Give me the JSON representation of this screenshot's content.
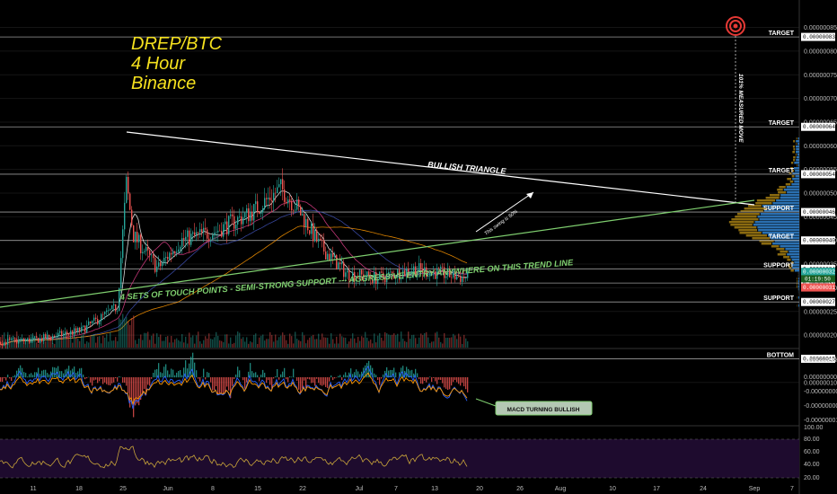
{
  "title": {
    "line1": "DREP/BTC",
    "line2": "4 Hour",
    "line3": "Binance"
  },
  "annotations": {
    "triangle": "BULLISH TRIANGLE",
    "support_line": "4 SETS OF TOUCH POINTS - SEMI-STRONG SUPPORT  ---  AGGRESSIVE ENTRY ANYWHERE ON THIS TREND LINE",
    "swing": "This swing is 50%",
    "measured": "101% MEASURED MOVE",
    "macd": "MACD TURNING BULLISH"
  },
  "colors": {
    "up": "#26a69a",
    "down": "#ef5350",
    "trend": "#ffffff",
    "support": "#7fcf6f",
    "target_marker": "#e53935",
    "profile_blue": "#2a6fb0",
    "profile_gold": "#8a6a10",
    "rsi_bg": "#1e0b2e",
    "rsi_line": "#c9a53a",
    "macd_line": "#2962ff",
    "signal_line": "#ff9800"
  },
  "chart_data": {
    "type": "candlestick",
    "y_axis_ticks": [
      "0.00000085",
      "0.00000080",
      "0.00000075",
      "0.00000070",
      "0.00000065",
      "0.00000060",
      "0.00000055",
      "0.00000050",
      "0.00000045",
      "0.00000040",
      "0.00000035",
      "0.00000030",
      "0.00000025",
      "0.00000020",
      "0.00000015",
      "0.00000010"
    ],
    "ylim": [
      9e-08,
      8.7e-07
    ],
    "x_axis_ticks": [
      "11",
      "18",
      "25",
      "Jun",
      "8",
      "15",
      "22",
      "Jul",
      "7",
      "13",
      "20",
      "26",
      "Aug",
      "10",
      "17",
      "24",
      "Sep",
      "7"
    ],
    "price_tags": [
      {
        "value": "0.00000083",
        "name": "TARGET"
      },
      {
        "value": "0.00000064",
        "name": "TARGET"
      },
      {
        "value": "0.00000054",
        "name": "TARGET"
      },
      {
        "value": "0.00000046",
        "name": "SUPPORT"
      },
      {
        "value": "0.00000040",
        "name": "TARGET"
      },
      {
        "value": "0.00000034",
        "name": "SUPPORT"
      },
      {
        "value": "0.00000031",
        "name": ""
      },
      {
        "value": "0.00000027",
        "name": "SUPPORT"
      },
      {
        "value": "0.00000015",
        "name": "BOTTOM"
      }
    ],
    "current_price_tags": [
      "0.00000032",
      "0.00000031"
    ],
    "countdown": "01:19:50",
    "macd_ticks": [
      "0.00000001",
      "0.00000000",
      "-0.00000000",
      "-0.00000000",
      "-0.00000001"
    ],
    "rsi_ticks": [
      "100.00",
      "80.00",
      "60.00",
      "40.00",
      "20.00"
    ]
  }
}
